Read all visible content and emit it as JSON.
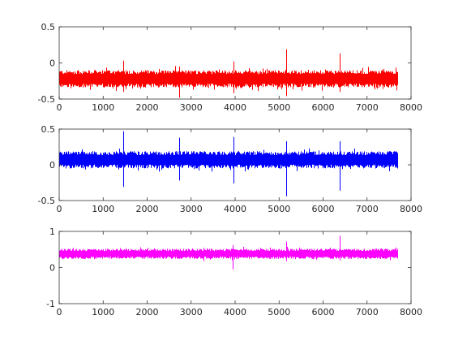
{
  "chart_data": [
    {
      "type": "line",
      "title": "",
      "xlabel": "",
      "ylabel": "",
      "xlim": [
        0,
        8000
      ],
      "ylim": [
        -0.5,
        0.5
      ],
      "xticks": [
        0,
        1000,
        2000,
        3000,
        4000,
        5000,
        6000,
        7000,
        8000
      ],
      "yticks": [
        -0.5,
        0,
        0.5
      ],
      "xtick_labels": [
        "0",
        "1000",
        "2000",
        "3000",
        "4000",
        "5000",
        "6000",
        "7000",
        "8000"
      ],
      "ytick_labels": [
        "-0.5",
        "0",
        "0.5"
      ],
      "grid": false,
      "series": [
        {
          "color": "#ff0000",
          "n_points": 7680,
          "baseline": -0.22,
          "noise_amplitude": 0.12,
          "spikes": [
            {
              "x": 1450,
              "max": 0.03,
              "min": -0.4
            },
            {
              "x": 2720,
              "max": -0.05,
              "min": -0.48
            },
            {
              "x": 3960,
              "max": 0.02,
              "min": -0.42
            },
            {
              "x": 5170,
              "max": 0.19,
              "min": -0.46
            },
            {
              "x": 6380,
              "max": 0.13,
              "min": -0.4
            }
          ]
        }
      ]
    },
    {
      "type": "line",
      "title": "",
      "xlabel": "",
      "ylabel": "",
      "xlim": [
        0,
        8000
      ],
      "ylim": [
        -0.5,
        0.5
      ],
      "xticks": [
        0,
        1000,
        2000,
        3000,
        4000,
        5000,
        6000,
        7000,
        8000
      ],
      "yticks": [
        -0.5,
        0,
        0.5
      ],
      "xtick_labels": [
        "0",
        "1000",
        "2000",
        "3000",
        "4000",
        "5000",
        "6000",
        "7000",
        "8000"
      ],
      "ytick_labels": [
        "-0.5",
        "0",
        "0.5"
      ],
      "grid": false,
      "series": [
        {
          "color": "#0000ff",
          "n_points": 7680,
          "baseline": 0.07,
          "noise_amplitude": 0.12,
          "spikes": [
            {
              "x": 1450,
              "max": 0.47,
              "min": -0.31
            },
            {
              "x": 2720,
              "max": 0.38,
              "min": -0.22
            },
            {
              "x": 3960,
              "max": 0.39,
              "min": -0.26
            },
            {
              "x": 5170,
              "max": 0.33,
              "min": -0.44
            },
            {
              "x": 6380,
              "max": 0.33,
              "min": -0.36
            }
          ]
        }
      ]
    },
    {
      "type": "line",
      "title": "",
      "xlabel": "",
      "ylabel": "",
      "xlim": [
        0,
        8000
      ],
      "ylim": [
        -1,
        1
      ],
      "xticks": [
        0,
        1000,
        2000,
        3000,
        4000,
        5000,
        6000,
        7000,
        8000
      ],
      "yticks": [
        -1,
        0,
        1
      ],
      "xtick_labels": [
        "0",
        "1000",
        "2000",
        "3000",
        "4000",
        "5000",
        "6000",
        "7000",
        "8000"
      ],
      "ytick_labels": [
        "-1",
        "0",
        "1"
      ],
      "grid": false,
      "series": [
        {
          "color": "#ff00ff",
          "n_points": 7680,
          "baseline": 0.38,
          "noise_amplitude": 0.14,
          "spikes": [
            {
              "x": 3940,
              "max": 0.62,
              "min": -0.05
            },
            {
              "x": 5170,
              "max": 0.72,
              "min": 0.18
            },
            {
              "x": 6380,
              "max": 0.88,
              "min": 0.2
            }
          ]
        }
      ]
    }
  ]
}
